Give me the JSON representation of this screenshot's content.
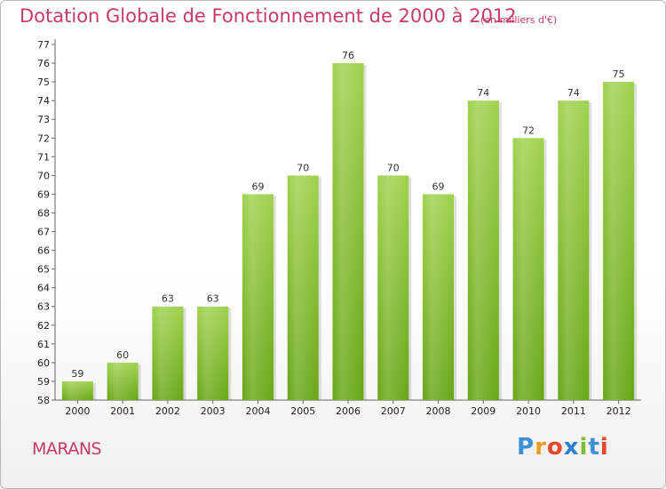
{
  "chart_data": {
    "type": "bar",
    "title": "Dotation Globale de Fonctionnement de 2000 à 2012",
    "subtitle": "(en milliers d'€)",
    "categories": [
      "2000",
      "2001",
      "2002",
      "2003",
      "2004",
      "2005",
      "2006",
      "2007",
      "2008",
      "2009",
      "2010",
      "2011",
      "2012"
    ],
    "values": [
      59,
      60,
      63,
      63,
      69,
      70,
      76,
      70,
      69,
      74,
      72,
      74,
      75
    ],
    "ylim": [
      58,
      77
    ],
    "yticks": [
      58,
      59,
      60,
      61,
      62,
      63,
      64,
      65,
      66,
      67,
      68,
      69,
      70,
      71,
      72,
      73,
      74,
      75,
      76,
      77
    ],
    "grid": false,
    "bar_color": "#8cc63f"
  },
  "location": "MARANS",
  "logo": {
    "letters": [
      "P",
      "r",
      "o",
      "x",
      "i",
      "t",
      "i"
    ],
    "colors": [
      "#3d8fd6",
      "#f39c1f",
      "#e8472e",
      "#2f7fcf",
      "#7cbf2f",
      "#3d8fd6",
      "#e8472e"
    ]
  }
}
